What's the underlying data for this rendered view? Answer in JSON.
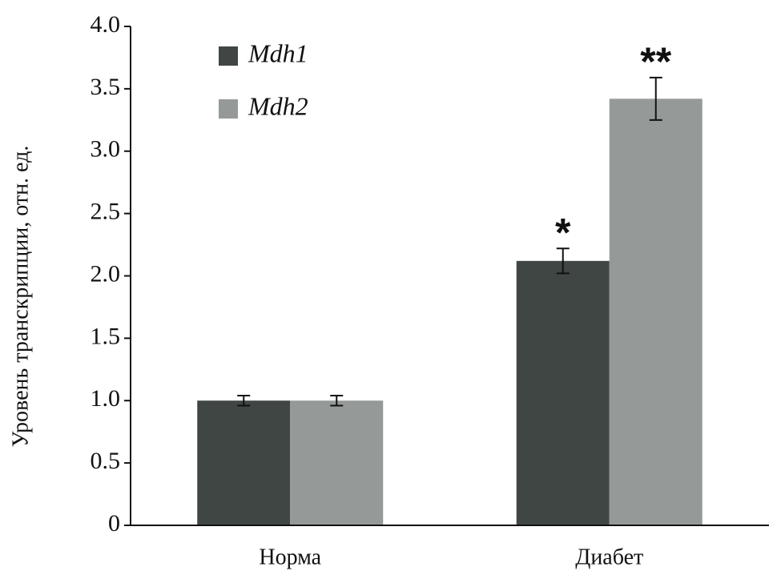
{
  "chart_data": {
    "type": "bar",
    "y_label": "Уровень транскрипции, отн. ед.",
    "categories": [
      "Норма",
      "Диабет"
    ],
    "series": [
      {
        "name": "Mdh1",
        "color": "#404644",
        "values": [
          1.0,
          2.12
        ],
        "errors": [
          0.04,
          0.1
        ],
        "annotations": [
          null,
          "*"
        ]
      },
      {
        "name": "Mdh2",
        "color": "#959a98",
        "values": [
          1.0,
          3.42
        ],
        "errors": [
          0.04,
          0.17
        ],
        "annotations": [
          null,
          "**"
        ]
      }
    ],
    "ylim": [
      0,
      4
    ],
    "yticks": [
      0,
      0.5,
      {
        "value": 1,
        "label": "1.0"
      },
      1.5,
      {
        "value": 2,
        "label": "2.0"
      },
      2.5,
      {
        "value": 3,
        "label": "3.0"
      },
      3.5,
      {
        "value": 4,
        "label": "4.0"
      }
    ],
    "legend": "upper-left",
    "grid": false
  }
}
